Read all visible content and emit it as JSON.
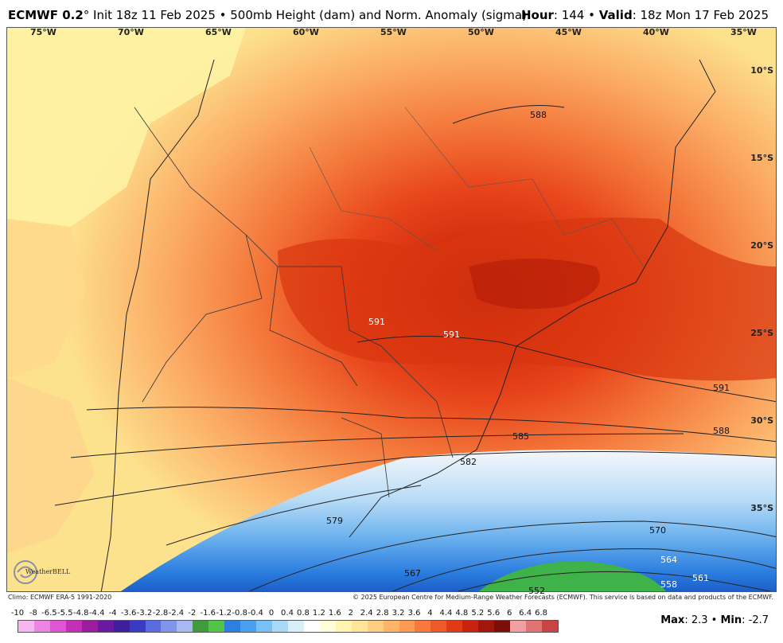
{
  "header": {
    "model": "ECMWF 0.2",
    "init": "° Init 18z 11 Feb 2025 • 500mb Height (dam) and Norm. Anomaly (sigma)",
    "hour_label": "Hour",
    "hour_value": ": 144 • ",
    "valid_label": "Valid",
    "valid_value": ": 18z Mon 17 Feb 2025"
  },
  "map": {
    "longitude_labels": [
      "75°W",
      "70°W",
      "65°W",
      "60°W",
      "55°W",
      "50°W",
      "45°W",
      "40°W",
      "35°W"
    ],
    "latitude_labels": [
      "10°S",
      "15°S",
      "20°S",
      "25°S",
      "30°S",
      "35°S"
    ],
    "contour_labels": [
      "588",
      "591",
      "591",
      "591",
      "588",
      "585",
      "582",
      "579",
      "570",
      "567",
      "564",
      "561",
      "558",
      "552"
    ]
  },
  "credits": {
    "left": "Climo: ECMWF ERA-5 1991-2020",
    "right": "© 2025 European Centre for Medium-Range Weather Forecasts (ECMWF). This service is based on data and products of the ECMWF."
  },
  "legend": {
    "values": [
      "-10",
      "-8",
      "-6.5",
      "-5.5",
      "-4.8",
      "-4.4",
      "-4",
      "-3.6",
      "-3.2",
      "-2.8",
      "-2.4",
      "-2",
      "-1.6",
      "-1.2",
      "-0.8",
      "-0.4",
      "0",
      "0.4",
      "0.8",
      "1.2",
      "1.6",
      "2",
      "2.4",
      "2.8",
      "3.2",
      "3.6",
      "4",
      "4.4",
      "4.8",
      "5.2",
      "5.6",
      "6",
      "6.4",
      "6.8"
    ],
    "colors": [
      "#f7b6f0",
      "#ee84e4",
      "#e055d4",
      "#c42fb8",
      "#9a1d9e",
      "#6a1aa0",
      "#3d1f9c",
      "#3a3bc2",
      "#5a6de0",
      "#7f95ec",
      "#a7b8f3",
      "#3f9b3c",
      "#52c44a",
      "#2d7fe0",
      "#4aa0f0",
      "#78c0f5",
      "#a9d9f8",
      "#d8eefb",
      "#ffffff",
      "#fffcd8",
      "#fff5b0",
      "#ffe49a",
      "#ffcf80",
      "#ffb468",
      "#ff9a52",
      "#f9793c",
      "#ef5a2a",
      "#e23a17",
      "#c8230f",
      "#a3170b",
      "#7a0f08",
      "#f0a0a0",
      "#e07474",
      "#c94545"
    ]
  },
  "stats": {
    "max_label": "Max",
    "max_value": ": 2.3 • ",
    "min_label": "Min",
    "min_value": ": -2.7"
  },
  "logo": {
    "text": "WeatherBELL",
    "icon": "swirl-logo-icon"
  }
}
